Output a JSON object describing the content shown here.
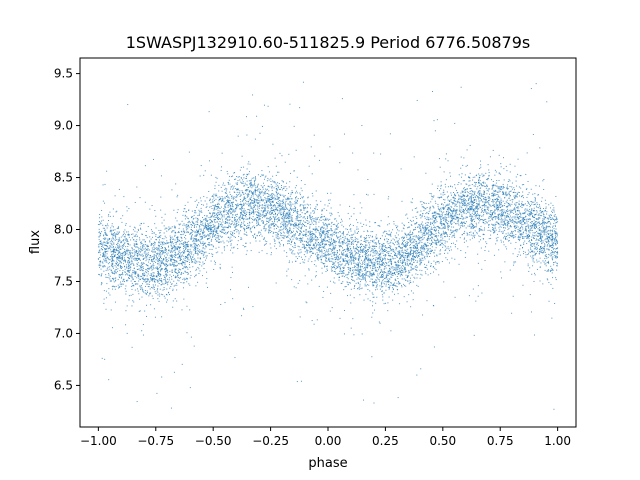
{
  "chart_data": {
    "type": "scatter",
    "title": "1SWASPJ132910.60-511825.9 Period 6776.50879s",
    "xlabel": "phase",
    "ylabel": "flux",
    "xlim": [
      -1.08,
      1.08
    ],
    "ylim": [
      6.1,
      9.65
    ],
    "xticks": [
      -1.0,
      -0.75,
      -0.5,
      -0.25,
      0.0,
      0.25,
      0.5,
      0.75,
      1.0
    ],
    "xtick_labels": [
      "−1.00",
      "−0.75",
      "−0.50",
      "−0.25",
      "0.00",
      "0.25",
      "0.50",
      "0.75",
      "1.00"
    ],
    "yticks": [
      6.5,
      7.0,
      7.5,
      8.0,
      8.5,
      9.0,
      9.5
    ],
    "ytick_labels": [
      "6.5",
      "7.0",
      "7.5",
      "8.0",
      "8.5",
      "9.0",
      "9.5"
    ],
    "grid": false,
    "marker_color": "#1f77b4",
    "series": [
      {
        "x": [
          -1.0,
          -0.95,
          -0.9,
          -0.85,
          -0.8,
          -0.75,
          -0.7,
          -0.65,
          -0.6,
          -0.55,
          -0.5,
          -0.45,
          -0.4,
          -0.35,
          -0.3,
          -0.25,
          -0.2,
          -0.15,
          -0.1,
          -0.05,
          0.0,
          0.05,
          0.1,
          0.15,
          0.2,
          0.25,
          0.3,
          0.35,
          0.4,
          0.45,
          0.5,
          0.55,
          0.6,
          0.65,
          0.7,
          0.75,
          0.8,
          0.85,
          0.9,
          0.95,
          1.0
        ],
        "y": [
          7.85,
          7.8,
          7.74,
          7.69,
          7.66,
          7.66,
          7.69,
          7.76,
          7.85,
          7.95,
          8.05,
          8.14,
          8.2,
          8.23,
          8.23,
          8.2,
          8.14,
          8.07,
          8.0,
          7.93,
          7.86,
          7.79,
          7.74,
          7.7,
          7.67,
          7.67,
          7.7,
          7.77,
          7.86,
          7.96,
          8.06,
          8.14,
          8.2,
          8.23,
          8.23,
          8.2,
          8.14,
          8.07,
          8.0,
          7.93,
          7.87
        ]
      }
    ]
  }
}
